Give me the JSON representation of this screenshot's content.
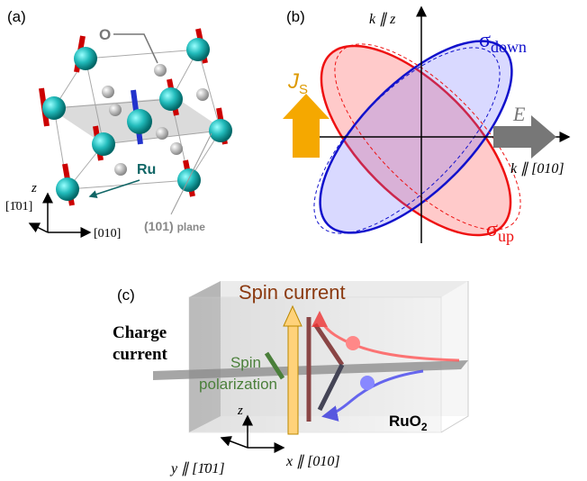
{
  "panel_a": {
    "label": "(a)",
    "oxygen_label": "O",
    "ru_label": "Ru",
    "z_label": "z",
    "axis_vertical": "[1̄01]",
    "axis_horizontal": "[010]",
    "plane_label": {
      "indices": "(101)",
      "text": "plane"
    }
  },
  "panel_b": {
    "label": "(b)",
    "vertical_axis": "k ∥ z",
    "horizontal_axis": "k ∥ [010]",
    "sigma_down": {
      "symbol": "σ",
      "sub": "down"
    },
    "sigma_up": {
      "symbol": "σ",
      "sub": "up"
    },
    "spin_current": {
      "symbol": "J",
      "sub": "S"
    },
    "field": "E"
  },
  "panel_c": {
    "label": "(c)",
    "spin_current": "Spin current",
    "charge_current": [
      "Charge",
      "current"
    ],
    "spin_polarization": [
      "Spin",
      "polarization"
    ],
    "z_label": "z",
    "material": {
      "text": "RuO",
      "sub": "2"
    },
    "y_axis": "y ∥ [1̄01]",
    "x_axis": "x ∥ [010]"
  }
}
